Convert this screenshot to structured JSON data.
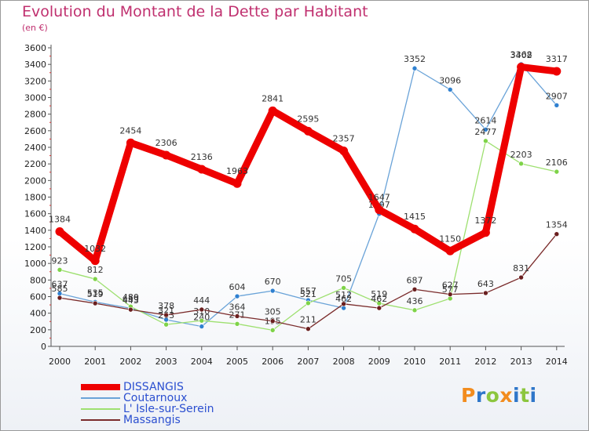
{
  "title": "Evolution du Montant de la Dette par Habitant",
  "subtitle": "(en €)",
  "logo": {
    "text": "Proxiti",
    "colors": [
      "#f28c1e",
      "#2e76c9",
      "#8cc63e",
      "#f28c1e",
      "#2e76c9",
      "#8cc63e",
      "#2e76c9"
    ]
  },
  "chart_data": {
    "type": "line",
    "title": "Evolution du Montant de la Dette par Habitant",
    "subtitle": "(en €)",
    "xlabel": "",
    "ylabel": "",
    "ylim": [
      0,
      3600
    ],
    "yticks": [
      0,
      200,
      400,
      600,
      800,
      1000,
      1200,
      1400,
      1600,
      1800,
      2000,
      2200,
      2400,
      2600,
      2800,
      3000,
      3200,
      3400,
      3600
    ],
    "grid": false,
    "legend_position": "bottom-left",
    "x": [
      "2000",
      "2001",
      "2002",
      "2003",
      "2004",
      "2005",
      "2006",
      "2007",
      "2008",
      "2009",
      "2010",
      "2011",
      "2012",
      "2013",
      "2014"
    ],
    "series": [
      {
        "name": "DISSANGIS",
        "color": "#ee0000",
        "marker": "#ee0000",
        "bold": true,
        "values": [
          1384,
          1032,
          2454,
          2306,
          2136,
          1963,
          2841,
          2595,
          2357,
          1647,
          1415,
          1150,
          1372,
          3368,
          3317
        ]
      },
      {
        "name": "Coutarnoux",
        "color": "#6aa3d8",
        "marker": "#2f80d0",
        "bold": false,
        "values": [
          637,
          535,
          459,
          321,
          240,
          604,
          670,
          557,
          462,
          1597,
          3352,
          3096,
          2614,
          3402,
          2907
        ]
      },
      {
        "name": "L' Isle-sur-Serein",
        "color": "#9ee070",
        "marker": "#7ed348",
        "bold": false,
        "values": [
          923,
          812,
          480,
          263,
          310,
          271,
          195,
          521,
          705,
          519,
          436,
          577,
          2477,
          2203,
          2106
        ]
      },
      {
        "name": "Massangis",
        "color": "#7a2b2b",
        "marker": "#6a1f1f",
        "bold": false,
        "values": [
          585,
          519,
          443,
          378,
          444,
          364,
          305,
          211,
          512,
          462,
          687,
          627,
          643,
          831,
          1354
        ]
      }
    ]
  }
}
